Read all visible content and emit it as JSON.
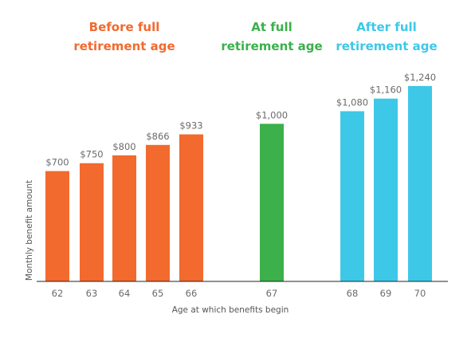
{
  "chart_data": {
    "type": "bar",
    "title": "",
    "xlabel": "Age at which benefits begin",
    "ylabel": "Monthly benefit amount",
    "ylim": [
      0,
      1300
    ],
    "grid": false,
    "groups": [
      {
        "name": "Before full retirement age",
        "lines": [
          "Before full",
          "retirement age"
        ],
        "color": "#f26a2e",
        "categories": [
          "62",
          "63",
          "64",
          "65",
          "66"
        ],
        "values": [
          700,
          750,
          800,
          866,
          933
        ],
        "labels": [
          "$700",
          "$750",
          "$800",
          "$866",
          "$933"
        ]
      },
      {
        "name": "At full retirement age",
        "lines": [
          "At full",
          "retirement age"
        ],
        "color": "#3bb04b",
        "categories": [
          "67"
        ],
        "values": [
          1000
        ],
        "labels": [
          "$1,000"
        ]
      },
      {
        "name": "After full retirement age",
        "lines": [
          "After full",
          "retirement age"
        ],
        "color": "#3ec8e8",
        "categories": [
          "68",
          "69",
          "70"
        ],
        "values": [
          1080,
          1160,
          1240
        ],
        "labels": [
          "$1,080",
          "$1,160",
          "$1,240"
        ]
      }
    ]
  }
}
